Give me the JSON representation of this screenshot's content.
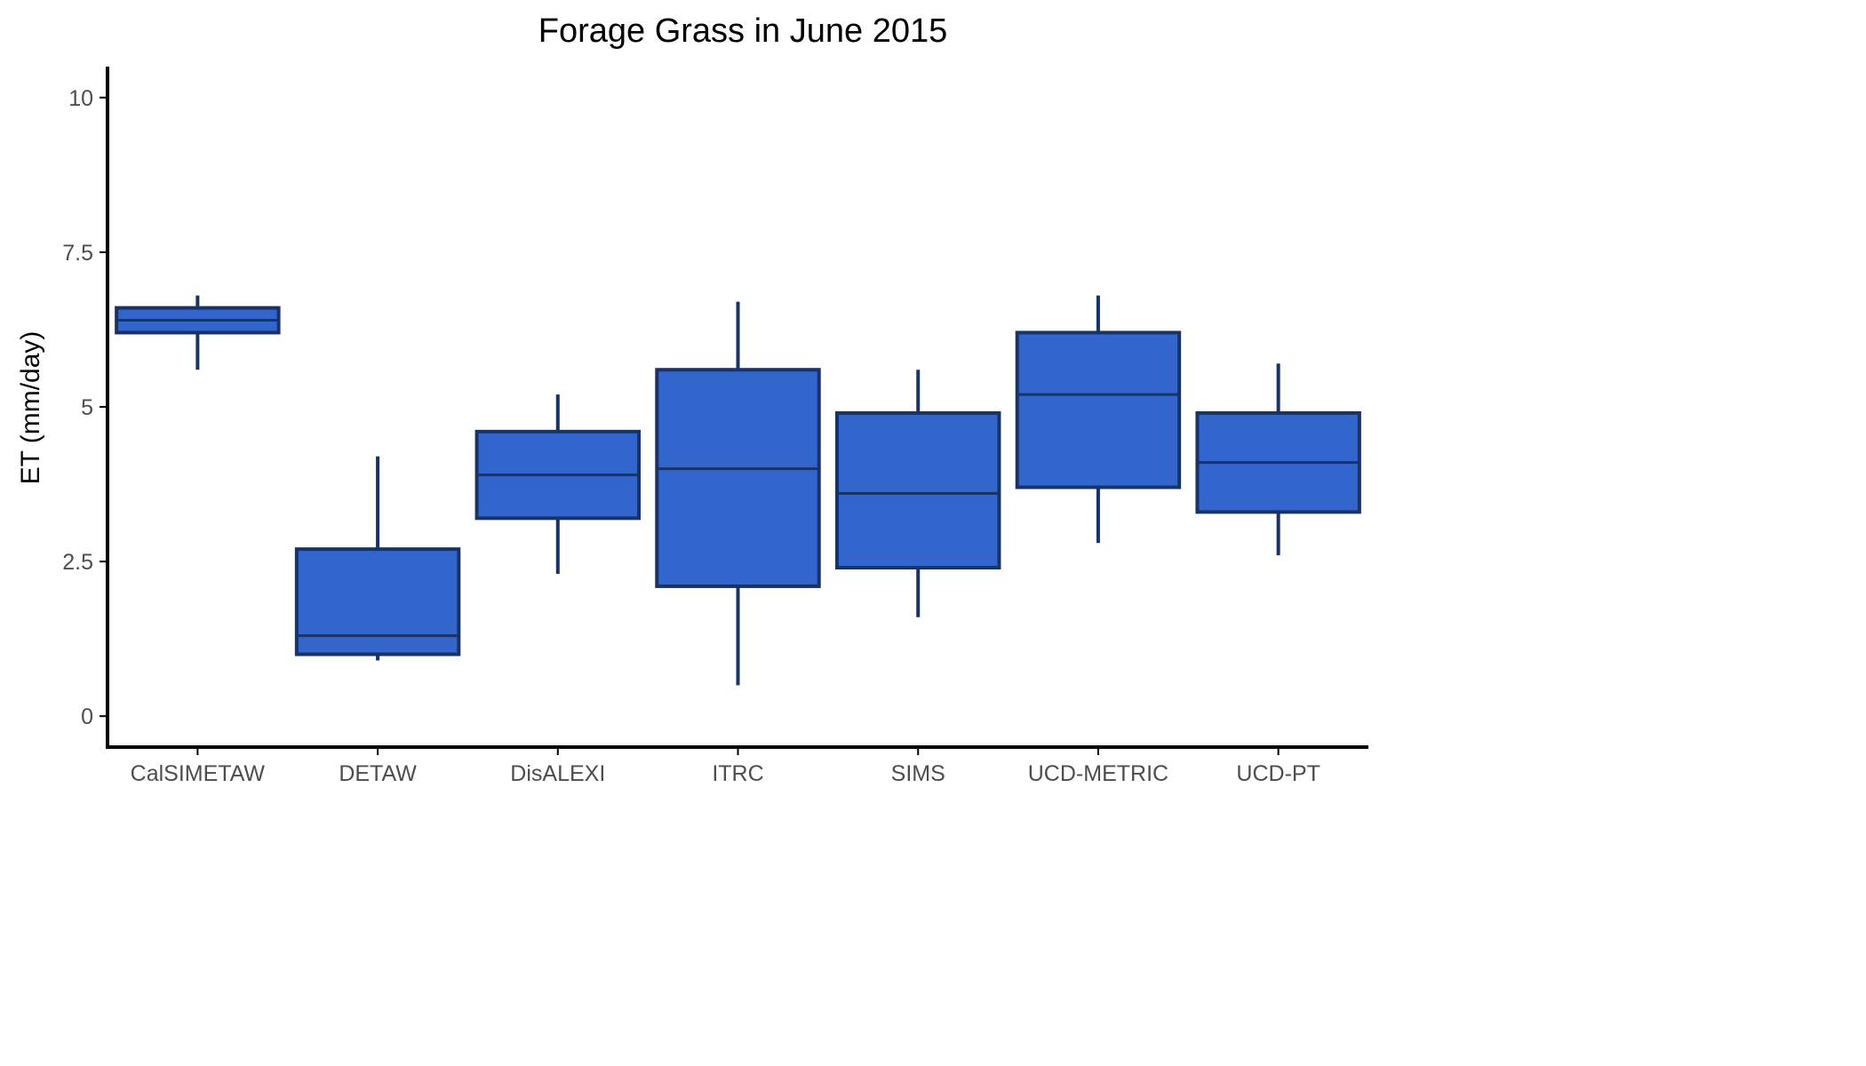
{
  "chart_data": {
    "type": "boxplot",
    "title": "Forage Grass in June 2015",
    "xlabel": "",
    "ylabel": "ET (mm/day)",
    "ylim": [
      -0.5,
      10.5
    ],
    "yticks": [
      0,
      2.5,
      5,
      7.5,
      10
    ],
    "ytick_labels": [
      "0",
      "2.5",
      "5",
      "7.5",
      "10"
    ],
    "grid": false,
    "legend": "none",
    "colors": {
      "box_fill": "#3366cc",
      "box_stroke": "#1a3366",
      "axis": "#000000"
    },
    "categories": [
      "CalSIMETAW",
      "DETAW",
      "DisALEXI",
      "ITRC",
      "SIMS",
      "UCD-METRIC",
      "UCD-PT"
    ],
    "boxes": [
      {
        "category": "CalSIMETAW",
        "whisker_low": 5.6,
        "q1": 6.2,
        "median": 6.4,
        "q3": 6.6,
        "whisker_high": 6.8
      },
      {
        "category": "DETAW",
        "whisker_low": 0.9,
        "q1": 1.0,
        "median": 1.3,
        "q3": 2.7,
        "whisker_high": 4.2
      },
      {
        "category": "DisALEXI",
        "whisker_low": 2.3,
        "q1": 3.2,
        "median": 3.9,
        "q3": 4.6,
        "whisker_high": 5.2
      },
      {
        "category": "ITRC",
        "whisker_low": 0.5,
        "q1": 2.1,
        "median": 4.0,
        "q3": 5.6,
        "whisker_high": 6.7
      },
      {
        "category": "SIMS",
        "whisker_low": 1.6,
        "q1": 2.4,
        "median": 3.6,
        "q3": 4.9,
        "whisker_high": 5.6
      },
      {
        "category": "UCD-METRIC",
        "whisker_low": 2.8,
        "q1": 3.7,
        "median": 5.2,
        "q3": 6.2,
        "whisker_high": 6.8
      },
      {
        "category": "UCD-PT",
        "whisker_low": 2.6,
        "q1": 3.3,
        "median": 4.1,
        "q3": 4.9,
        "whisker_high": 5.7
      }
    ]
  }
}
